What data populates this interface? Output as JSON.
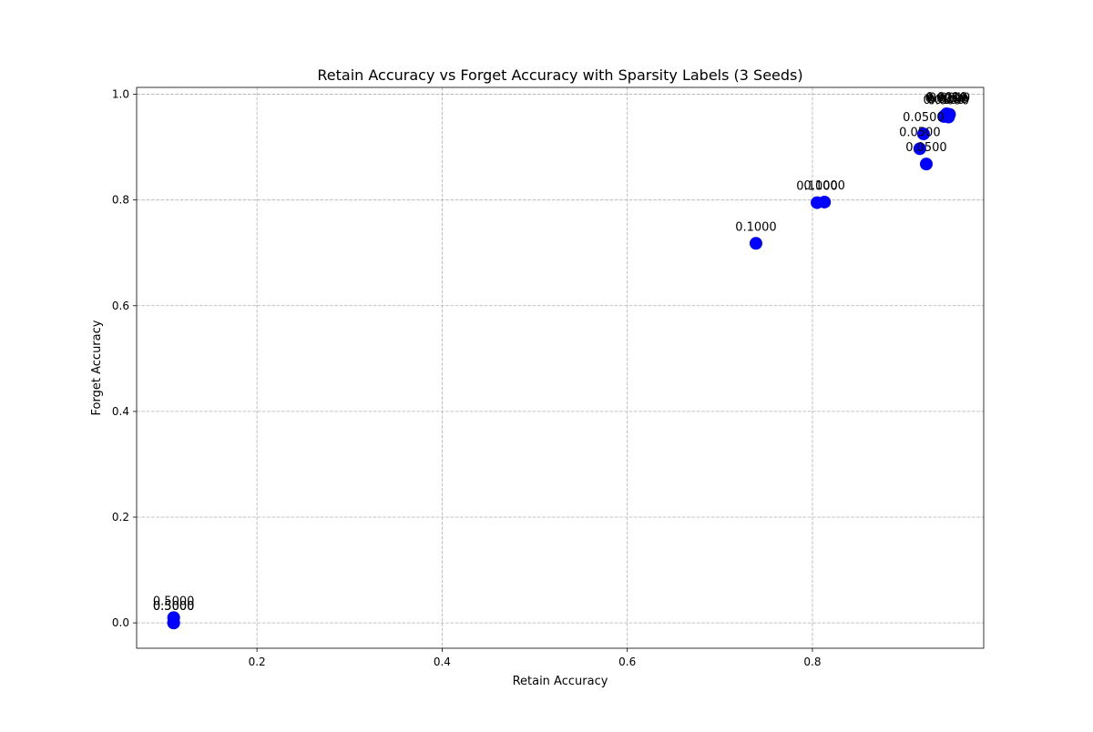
{
  "chart_data": {
    "type": "scatter",
    "title": "Retain Accuracy vs Forget Accuracy with Sparsity Labels (3 Seeds)",
    "xlabel": "Retain Accuracy",
    "ylabel": "Forget Accuracy",
    "xlim": [
      0.07,
      0.985
    ],
    "ylim": [
      -0.048,
      1.013
    ],
    "x_ticks": [
      0.2,
      0.4,
      0.6,
      0.8
    ],
    "y_ticks": [
      0.0,
      0.2,
      0.4,
      0.6,
      0.8,
      1.0
    ],
    "x_tick_labels": [
      "0.2",
      "0.4",
      "0.6",
      "0.8"
    ],
    "y_tick_labels": [
      "0.0",
      "0.2",
      "0.4",
      "0.6",
      "0.8",
      "1.0"
    ],
    "grid": true,
    "marker_color": "#0000ff",
    "points": [
      {
        "x": 0.11,
        "y": 0.0,
        "label": "0.5000"
      },
      {
        "x": 0.11,
        "y": 0.0,
        "label": "0.5000"
      },
      {
        "x": 0.11,
        "y": 0.01,
        "label": "0.5000"
      },
      {
        "x": 0.739,
        "y": 0.718,
        "label": "0.1000"
      },
      {
        "x": 0.805,
        "y": 0.795,
        "label": "0.1000"
      },
      {
        "x": 0.813,
        "y": 0.796,
        "label": "0.1000"
      },
      {
        "x": 0.916,
        "y": 0.897,
        "label": "0.0500"
      },
      {
        "x": 0.92,
        "y": 0.925,
        "label": "0.0500"
      },
      {
        "x": 0.923,
        "y": 0.868,
        "label": "0.0500"
      },
      {
        "x": 0.942,
        "y": 0.958,
        "label": "0.0100"
      },
      {
        "x": 0.944,
        "y": 0.961,
        "label": "0.0050"
      },
      {
        "x": 0.945,
        "y": 0.963,
        "label": "0.0010"
      },
      {
        "x": 0.946,
        "y": 0.96,
        "label": "0.0100"
      },
      {
        "x": 0.947,
        "y": 0.957,
        "label": "0.0050"
      },
      {
        "x": 0.948,
        "y": 0.962,
        "label": "0.0010"
      }
    ]
  }
}
